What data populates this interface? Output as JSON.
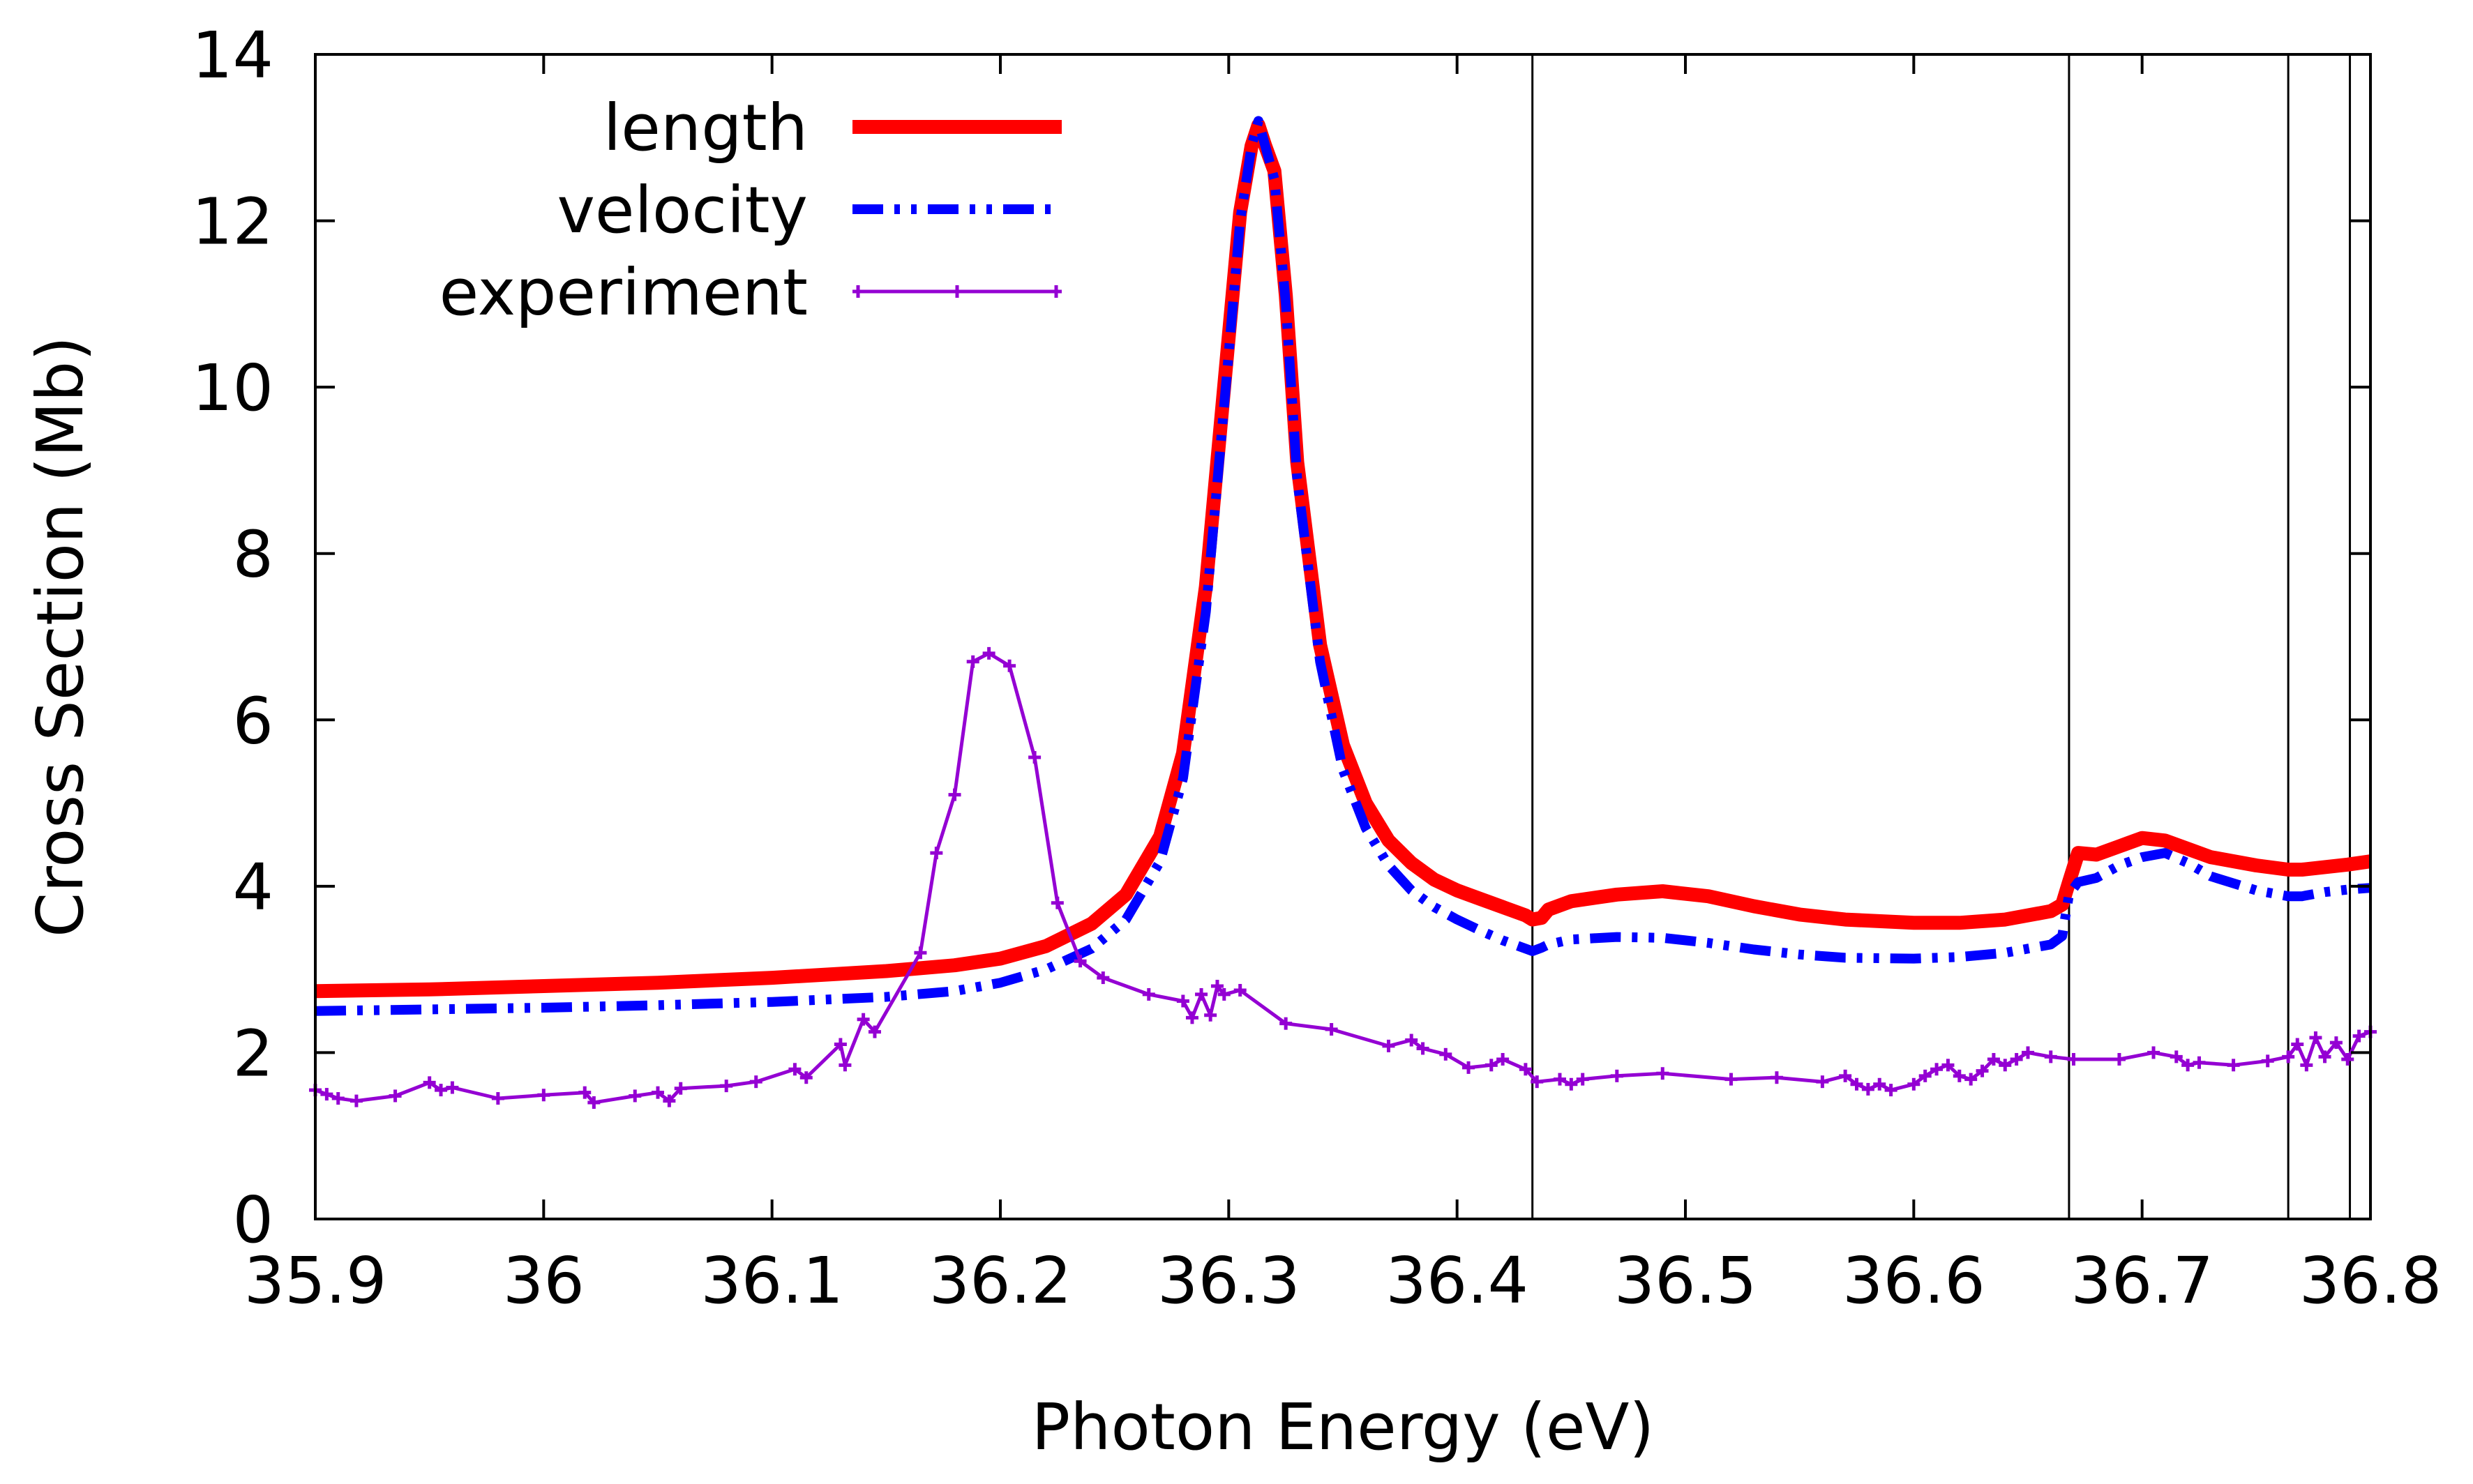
{
  "chart_data": {
    "type": "line",
    "title": "",
    "xlabel": "Photon Energy (eV)",
    "ylabel": "Cross Section (Mb)",
    "xlim": [
      35.9,
      36.8
    ],
    "ylim": [
      0,
      14
    ],
    "x_ticks": [
      {
        "value": 35.9,
        "label": "35.9"
      },
      {
        "value": 36.0,
        "label": "36"
      },
      {
        "value": 36.1,
        "label": "36.1"
      },
      {
        "value": 36.2,
        "label": "36.2"
      },
      {
        "value": 36.3,
        "label": "36.3"
      },
      {
        "value": 36.4,
        "label": "36.4"
      },
      {
        "value": 36.5,
        "label": "36.5"
      },
      {
        "value": 36.6,
        "label": "36.6"
      },
      {
        "value": 36.7,
        "label": "36.7"
      },
      {
        "value": 36.8,
        "label": "36.8"
      }
    ],
    "y_ticks": [
      {
        "value": 0,
        "label": "0"
      },
      {
        "value": 2,
        "label": "2"
      },
      {
        "value": 4,
        "label": "4"
      },
      {
        "value": 6,
        "label": "6"
      },
      {
        "value": 8,
        "label": "8"
      },
      {
        "value": 10,
        "label": "10"
      },
      {
        "value": 12,
        "label": "12"
      },
      {
        "value": 14,
        "label": "14"
      }
    ],
    "grid": false,
    "legend_position": "top-left",
    "vertical_lines": [
      36.433,
      36.668,
      36.764,
      36.791
    ],
    "series": [
      {
        "name": "length",
        "color": "#ff0000",
        "style": "solid",
        "x": [
          35.9,
          35.95,
          36.0,
          36.05,
          36.1,
          36.15,
          36.18,
          36.2,
          36.22,
          36.24,
          36.255,
          36.27,
          36.28,
          36.29,
          36.3,
          36.305,
          36.31,
          36.313,
          36.316,
          36.32,
          36.325,
          36.33,
          36.34,
          36.35,
          36.36,
          36.37,
          36.38,
          36.39,
          36.4,
          36.41,
          36.42,
          36.43,
          36.433,
          36.437,
          36.44,
          36.45,
          36.47,
          36.49,
          36.51,
          36.53,
          36.55,
          36.57,
          36.6,
          36.62,
          36.64,
          36.66,
          36.665,
          36.668,
          36.672,
          36.68,
          36.69,
          36.7,
          36.71,
          36.72,
          36.73,
          36.75,
          36.764,
          36.77,
          36.78,
          36.79,
          36.8
        ],
        "y": [
          2.74,
          2.76,
          2.8,
          2.84,
          2.9,
          2.98,
          3.05,
          3.13,
          3.28,
          3.55,
          3.9,
          4.6,
          5.6,
          7.6,
          10.6,
          12.1,
          12.9,
          13.15,
          12.9,
          12.6,
          11.1,
          9.1,
          6.9,
          5.7,
          5.0,
          4.55,
          4.28,
          4.08,
          3.95,
          3.85,
          3.75,
          3.65,
          3.6,
          3.62,
          3.72,
          3.82,
          3.9,
          3.94,
          3.88,
          3.76,
          3.66,
          3.6,
          3.56,
          3.56,
          3.6,
          3.7,
          3.78,
          4.05,
          4.4,
          4.38,
          4.48,
          4.58,
          4.55,
          4.45,
          4.35,
          4.25,
          4.2,
          4.2,
          4.23,
          4.26,
          4.3
        ]
      },
      {
        "name": "velocity",
        "color": "#0000ff",
        "style": "dash-dot-dot",
        "x": [
          35.9,
          35.95,
          36.0,
          36.05,
          36.1,
          36.15,
          36.18,
          36.2,
          36.22,
          36.24,
          36.255,
          36.27,
          36.28,
          36.29,
          36.3,
          36.305,
          36.31,
          36.313,
          36.316,
          36.32,
          36.325,
          36.33,
          36.34,
          36.35,
          36.36,
          36.37,
          36.38,
          36.39,
          36.4,
          36.41,
          36.42,
          36.43,
          36.433,
          36.437,
          36.44,
          36.45,
          36.47,
          36.49,
          36.51,
          36.53,
          36.55,
          36.57,
          36.6,
          36.62,
          36.64,
          36.66,
          36.665,
          36.668,
          36.672,
          36.68,
          36.69,
          36.7,
          36.71,
          36.72,
          36.73,
          36.75,
          36.764,
          36.77,
          36.78,
          36.79,
          36.8
        ],
        "y": [
          2.5,
          2.52,
          2.54,
          2.57,
          2.61,
          2.67,
          2.74,
          2.84,
          3.0,
          3.25,
          3.6,
          4.3,
          5.3,
          7.3,
          10.4,
          12.0,
          12.9,
          13.2,
          12.9,
          12.5,
          11.0,
          8.9,
          6.7,
          5.4,
          4.7,
          4.25,
          3.95,
          3.75,
          3.6,
          3.47,
          3.35,
          3.25,
          3.22,
          3.26,
          3.3,
          3.36,
          3.39,
          3.38,
          3.32,
          3.24,
          3.18,
          3.14,
          3.13,
          3.15,
          3.2,
          3.3,
          3.4,
          3.9,
          4.05,
          4.1,
          4.25,
          4.35,
          4.4,
          4.28,
          4.12,
          3.95,
          3.88,
          3.88,
          3.93,
          3.96,
          3.98
        ]
      },
      {
        "name": "experiment",
        "color": "#9400d3",
        "style": "line-with-points",
        "x": [
          35.9,
          35.905,
          35.91,
          35.918,
          35.935,
          35.95,
          35.955,
          35.96,
          35.98,
          36.0,
          36.018,
          36.022,
          36.04,
          36.05,
          36.055,
          36.06,
          36.08,
          36.093,
          36.11,
          36.115,
          36.13,
          36.132,
          36.14,
          36.145,
          36.165,
          36.172,
          36.18,
          36.188,
          36.195,
          36.204,
          36.215,
          36.225,
          36.235,
          36.245,
          36.265,
          36.28,
          36.284,
          36.288,
          36.292,
          36.295,
          36.298,
          36.305,
          36.325,
          36.345,
          36.37,
          36.38,
          36.385,
          36.395,
          36.405,
          36.415,
          36.42,
          36.43,
          36.435,
          36.445,
          36.45,
          36.455,
          36.47,
          36.49,
          36.52,
          36.54,
          36.56,
          36.57,
          36.575,
          36.58,
          36.585,
          36.59,
          36.6,
          36.605,
          36.61,
          36.615,
          36.62,
          36.625,
          36.63,
          36.635,
          36.64,
          36.645,
          36.65,
          36.66,
          36.67,
          36.69,
          36.705,
          36.715,
          36.72,
          36.725,
          36.74,
          36.755,
          36.764,
          36.768,
          36.772,
          36.776,
          36.78,
          36.785,
          36.79,
          36.795,
          36.8
        ],
        "y": [
          1.55,
          1.5,
          1.45,
          1.42,
          1.48,
          1.64,
          1.55,
          1.58,
          1.45,
          1.49,
          1.52,
          1.4,
          1.48,
          1.52,
          1.42,
          1.57,
          1.6,
          1.65,
          1.8,
          1.7,
          2.1,
          1.85,
          2.4,
          2.25,
          3.2,
          4.4,
          5.1,
          6.7,
          6.8,
          6.65,
          5.55,
          3.8,
          3.1,
          2.9,
          2.7,
          2.62,
          2.42,
          2.7,
          2.45,
          2.8,
          2.7,
          2.75,
          2.35,
          2.28,
          2.08,
          2.15,
          2.05,
          1.98,
          1.82,
          1.85,
          1.92,
          1.8,
          1.65,
          1.68,
          1.62,
          1.68,
          1.72,
          1.75,
          1.68,
          1.7,
          1.65,
          1.72,
          1.62,
          1.56,
          1.62,
          1.55,
          1.62,
          1.72,
          1.8,
          1.85,
          1.72,
          1.68,
          1.78,
          1.92,
          1.85,
          1.92,
          2.0,
          1.95,
          1.92,
          1.92,
          2.0,
          1.95,
          1.85,
          1.88,
          1.85,
          1.9,
          1.95,
          2.1,
          1.85,
          2.18,
          1.95,
          2.12,
          1.92,
          2.2,
          2.25
        ]
      }
    ]
  }
}
